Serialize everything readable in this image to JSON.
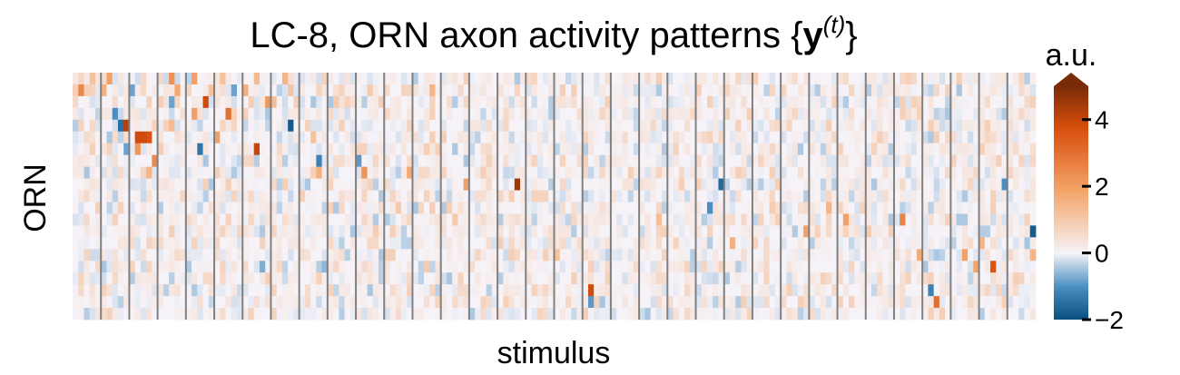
{
  "chart_data": {
    "type": "heatmap",
    "title": "LC-8, ORN axon activity patterns {y(t)}",
    "title_parts": {
      "prefix": "LC-8, ORN axon activity patterns ",
      "brace_open": "{",
      "bold_symbol": "y",
      "superscript": "(t)",
      "brace_close": "}"
    },
    "xlabel": "stimulus",
    "ylabel": "ORN",
    "colorbar": {
      "label": "a.u.",
      "range": [
        -2,
        5
      ],
      "ticks": [
        -2,
        0,
        2,
        4
      ],
      "tick_labels": [
        "−2",
        "0",
        "2",
        "4"
      ],
      "extend": "max",
      "colors": {
        "low": "#084f7f",
        "mid_low": "#4a8ec2",
        "zero": "#f6f3f8",
        "mid_high": "#f4a56a",
        "high": "#d84e0c",
        "max": "#7a2b07"
      }
    },
    "grid": {
      "rows": 21,
      "groups": 34,
      "columns_per_group": 5,
      "separator_color": "#808080"
    },
    "highlights": [
      {
        "group": 0,
        "col": 1,
        "row": 1,
        "v": 2.5
      },
      {
        "group": 0,
        "col": 3,
        "row": 0,
        "v": 1.2
      },
      {
        "group": 1,
        "col": 0,
        "row": 1,
        "v": 1.6
      },
      {
        "group": 1,
        "col": 1,
        "row": 0,
        "v": 2.0
      },
      {
        "group": 1,
        "col": 4,
        "row": 4,
        "v": 4.2
      },
      {
        "group": 1,
        "col": 3,
        "row": 4,
        "v": -1.5
      },
      {
        "group": 1,
        "col": 2,
        "row": 3,
        "v": -1.0
      },
      {
        "group": 1,
        "col": 4,
        "row": 6,
        "v": -0.8
      },
      {
        "group": 2,
        "col": 1,
        "row": 5,
        "v": 3.8
      },
      {
        "group": 2,
        "col": 2,
        "row": 5,
        "v": 3.8
      },
      {
        "group": 2,
        "col": 3,
        "row": 5,
        "v": 3.6
      },
      {
        "group": 2,
        "col": 1,
        "row": 6,
        "v": 2.2
      },
      {
        "group": 2,
        "col": 4,
        "row": 7,
        "v": 2.5
      },
      {
        "group": 2,
        "col": 3,
        "row": 8,
        "v": 1.5
      },
      {
        "group": 2,
        "col": 0,
        "row": 1,
        "v": -0.8
      },
      {
        "group": 3,
        "col": 2,
        "row": 0,
        "v": 2.3
      },
      {
        "group": 3,
        "col": 3,
        "row": 1,
        "v": 1.8
      },
      {
        "group": 3,
        "col": 2,
        "row": 4,
        "v": 1.4
      },
      {
        "group": 3,
        "col": 2,
        "row": 2,
        "v": -0.8
      },
      {
        "group": 4,
        "col": 1,
        "row": 0,
        "v": 2.0
      },
      {
        "group": 4,
        "col": 3,
        "row": 2,
        "v": 3.9
      },
      {
        "group": 4,
        "col": 1,
        "row": 3,
        "v": 2.0
      },
      {
        "group": 4,
        "col": 2,
        "row": 6,
        "v": -1.4
      },
      {
        "group": 4,
        "col": 4,
        "row": 1,
        "v": 1.2
      },
      {
        "group": 5,
        "col": 2,
        "row": 3,
        "v": 3.0
      },
      {
        "group": 5,
        "col": 0,
        "row": 5,
        "v": 2.0
      },
      {
        "group": 5,
        "col": 1,
        "row": 0,
        "v": 1.2
      },
      {
        "group": 5,
        "col": 3,
        "row": 1,
        "v": -0.8
      },
      {
        "group": 6,
        "col": 0,
        "row": 1,
        "v": 1.6
      },
      {
        "group": 6,
        "col": 2,
        "row": 0,
        "v": 1.4
      },
      {
        "group": 6,
        "col": 4,
        "row": 2,
        "v": 2.2
      },
      {
        "group": 6,
        "col": 2,
        "row": 6,
        "v": 4.0
      },
      {
        "group": 6,
        "col": 1,
        "row": 2,
        "v": 0.9
      },
      {
        "group": 6,
        "col": 3,
        "row": 16,
        "v": -0.7
      },
      {
        "group": 7,
        "col": 0,
        "row": 2,
        "v": 1.3
      },
      {
        "group": 7,
        "col": 3,
        "row": 4,
        "v": -1.8
      },
      {
        "group": 7,
        "col": 2,
        "row": 0,
        "v": 1.5
      },
      {
        "group": 7,
        "col": 3,
        "row": 1,
        "v": 1.1
      },
      {
        "group": 8,
        "col": 3,
        "row": 7,
        "v": -1.2
      },
      {
        "group": 8,
        "col": 3,
        "row": 8,
        "v": 1.6
      },
      {
        "group": 8,
        "col": 2,
        "row": 5,
        "v": 1.2
      },
      {
        "group": 8,
        "col": 0,
        "row": 10,
        "v": 0.9
      },
      {
        "group": 8,
        "col": 4,
        "row": 16,
        "v": -0.6
      },
      {
        "group": 9,
        "col": 1,
        "row": 2,
        "v": 1.0
      },
      {
        "group": 9,
        "col": 0,
        "row": 11,
        "v": 0.8
      },
      {
        "group": 10,
        "col": 1,
        "row": 8,
        "v": 2.3
      },
      {
        "group": 10,
        "col": 0,
        "row": 7,
        "v": -0.9
      },
      {
        "group": 10,
        "col": 2,
        "row": 1,
        "v": 1.0
      },
      {
        "group": 11,
        "col": 4,
        "row": 8,
        "v": 1.8
      },
      {
        "group": 11,
        "col": 2,
        "row": 11,
        "v": 1.0
      },
      {
        "group": 12,
        "col": 3,
        "row": 1,
        "v": 1.5
      },
      {
        "group": 12,
        "col": 2,
        "row": 16,
        "v": 1.0
      },
      {
        "group": 13,
        "col": 4,
        "row": 9,
        "v": 2.0
      },
      {
        "group": 13,
        "col": 2,
        "row": 12,
        "v": 1.0
      },
      {
        "group": 15,
        "col": 3,
        "row": 9,
        "v": 4.5
      },
      {
        "group": 17,
        "col": 0,
        "row": 15,
        "v": 1.2
      },
      {
        "group": 18,
        "col": 1,
        "row": 18,
        "v": 3.8
      },
      {
        "group": 18,
        "col": 1,
        "row": 19,
        "v": -0.9
      },
      {
        "group": 20,
        "col": 3,
        "row": 12,
        "v": 1.3
      },
      {
        "group": 22,
        "col": 2,
        "row": 11,
        "v": -1.0
      },
      {
        "group": 22,
        "col": 4,
        "row": 9,
        "v": -1.6
      },
      {
        "group": 23,
        "col": 1,
        "row": 14,
        "v": 1.6
      },
      {
        "group": 25,
        "col": 4,
        "row": 13,
        "v": 2.0
      },
      {
        "group": 26,
        "col": 3,
        "row": 11,
        "v": 1.5
      },
      {
        "group": 27,
        "col": 1,
        "row": 12,
        "v": 2.0
      },
      {
        "group": 28,
        "col": 0,
        "row": 13,
        "v": 1.0
      },
      {
        "group": 29,
        "col": 1,
        "row": 12,
        "v": 2.6
      },
      {
        "group": 29,
        "col": 4,
        "row": 15,
        "v": 1.7
      },
      {
        "group": 30,
        "col": 2,
        "row": 19,
        "v": 3.0
      },
      {
        "group": 30,
        "col": 1,
        "row": 18,
        "v": -1.2
      },
      {
        "group": 31,
        "col": 2,
        "row": 15,
        "v": 2.0
      },
      {
        "group": 31,
        "col": 4,
        "row": 16,
        "v": 1.9
      },
      {
        "group": 32,
        "col": 2,
        "row": 16,
        "v": 3.6
      },
      {
        "group": 32,
        "col": 0,
        "row": 14,
        "v": 1.5
      },
      {
        "group": 32,
        "col": 4,
        "row": 9,
        "v": -1.0
      },
      {
        "group": 33,
        "col": 4,
        "row": 13,
        "v": -1.8
      },
      {
        "group": 33,
        "col": 4,
        "row": 15,
        "v": 1.5
      }
    ]
  }
}
